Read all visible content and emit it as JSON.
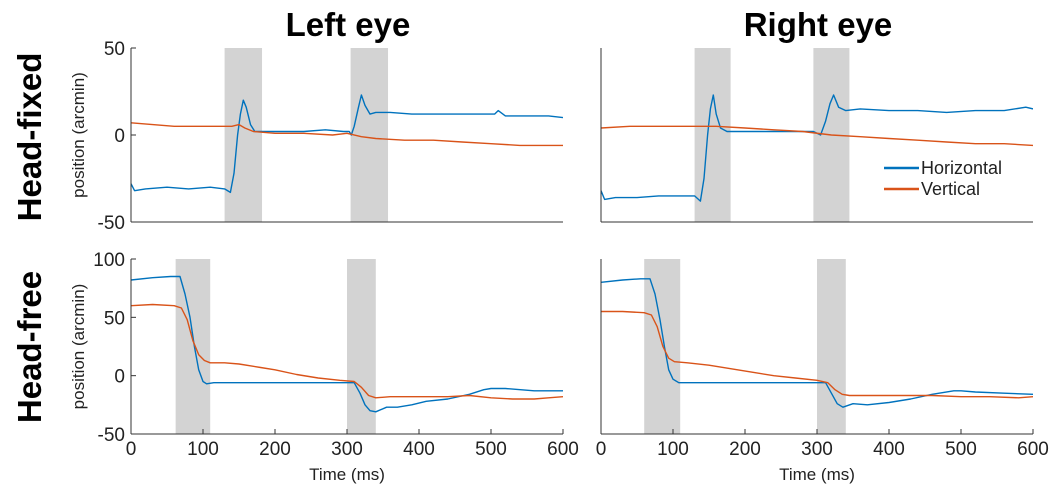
{
  "figure": {
    "column_titles": [
      "Left eye",
      "Right eye"
    ],
    "row_titles": [
      "Head-fixed",
      "Head-free"
    ],
    "legend": [
      {
        "label": "Horizontal",
        "color": "#0072BD"
      },
      {
        "label": "Vertical",
        "color": "#D95319"
      }
    ],
    "shade_color": "#d3d3d3"
  },
  "chart_data": [
    {
      "type": "line",
      "panel": "head-fixed-left-eye",
      "title": "Left eye",
      "ylabel": "position (arcmin)",
      "xlabel": "",
      "xlim": [
        0,
        600
      ],
      "ylim": [
        -50,
        50
      ],
      "xticks": [],
      "yticks": [
        -50,
        0,
        50
      ],
      "shaded_intervals": [
        [
          130,
          182
        ],
        [
          305,
          357
        ]
      ],
      "series": [
        {
          "name": "Horizontal",
          "color": "#0072BD",
          "points": [
            [
              0,
              -28
            ],
            [
              5,
              -32
            ],
            [
              20,
              -31
            ],
            [
              50,
              -30
            ],
            [
              80,
              -31
            ],
            [
              110,
              -30
            ],
            [
              130,
              -31
            ],
            [
              138,
              -33
            ],
            [
              143,
              -22
            ],
            [
              148,
              0
            ],
            [
              152,
              12
            ],
            [
              156,
              20
            ],
            [
              160,
              16
            ],
            [
              166,
              6
            ],
            [
              172,
              2
            ],
            [
              182,
              2
            ],
            [
              210,
              2
            ],
            [
              240,
              2
            ],
            [
              270,
              3
            ],
            [
              295,
              2
            ],
            [
              303,
              2
            ],
            [
              306,
              0
            ],
            [
              310,
              5
            ],
            [
              316,
              16
            ],
            [
              320,
              23
            ],
            [
              325,
              17
            ],
            [
              332,
              12
            ],
            [
              340,
              13
            ],
            [
              360,
              13
            ],
            [
              390,
              12
            ],
            [
              420,
              12
            ],
            [
              450,
              12
            ],
            [
              480,
              12
            ],
            [
              505,
              12
            ],
            [
              510,
              14
            ],
            [
              520,
              11
            ],
            [
              550,
              11
            ],
            [
              580,
              11
            ],
            [
              600,
              10
            ]
          ]
        },
        {
          "name": "Vertical",
          "color": "#D95319",
          "points": [
            [
              0,
              7
            ],
            [
              30,
              6
            ],
            [
              60,
              5
            ],
            [
              90,
              5
            ],
            [
              120,
              5
            ],
            [
              140,
              5
            ],
            [
              150,
              6
            ],
            [
              158,
              4
            ],
            [
              170,
              2
            ],
            [
              200,
              1
            ],
            [
              240,
              1
            ],
            [
              280,
              0
            ],
            [
              300,
              1
            ],
            [
              320,
              -1
            ],
            [
              340,
              -2
            ],
            [
              380,
              -3
            ],
            [
              420,
              -3
            ],
            [
              460,
              -4
            ],
            [
              500,
              -5
            ],
            [
              540,
              -6
            ],
            [
              580,
              -6
            ],
            [
              600,
              -6
            ]
          ]
        }
      ]
    },
    {
      "type": "line",
      "panel": "head-fixed-right-eye",
      "title": "Right eye",
      "ylabel": "",
      "xlabel": "",
      "xlim": [
        0,
        600
      ],
      "ylim": [
        -50,
        50
      ],
      "xticks": [],
      "yticks": [],
      "shaded_intervals": [
        [
          130,
          180
        ],
        [
          295,
          345
        ]
      ],
      "series": [
        {
          "name": "Horizontal",
          "color": "#0072BD",
          "points": [
            [
              0,
              -32
            ],
            [
              5,
              -37
            ],
            [
              20,
              -36
            ],
            [
              50,
              -36
            ],
            [
              80,
              -35
            ],
            [
              110,
              -35
            ],
            [
              130,
              -35
            ],
            [
              138,
              -38
            ],
            [
              143,
              -25
            ],
            [
              148,
              0
            ],
            [
              152,
              15
            ],
            [
              156,
              23
            ],
            [
              160,
              12
            ],
            [
              166,
              4
            ],
            [
              175,
              2
            ],
            [
              200,
              2
            ],
            [
              240,
              2
            ],
            [
              270,
              2
            ],
            [
              295,
              2
            ],
            [
              300,
              1
            ],
            [
              305,
              0
            ],
            [
              312,
              8
            ],
            [
              318,
              18
            ],
            [
              323,
              23
            ],
            [
              330,
              16
            ],
            [
              340,
              14
            ],
            [
              360,
              15
            ],
            [
              400,
              14
            ],
            [
              440,
              14
            ],
            [
              480,
              13
            ],
            [
              520,
              14
            ],
            [
              560,
              14
            ],
            [
              590,
              16
            ],
            [
              600,
              15
            ]
          ]
        },
        {
          "name": "Vertical",
          "color": "#D95319",
          "points": [
            [
              0,
              4
            ],
            [
              40,
              5
            ],
            [
              80,
              5
            ],
            [
              120,
              5
            ],
            [
              160,
              5
            ],
            [
              200,
              4
            ],
            [
              240,
              3
            ],
            [
              280,
              2
            ],
            [
              320,
              0
            ],
            [
              360,
              -1
            ],
            [
              400,
              -2
            ],
            [
              440,
              -3
            ],
            [
              480,
              -4
            ],
            [
              520,
              -5
            ],
            [
              560,
              -5
            ],
            [
              600,
              -6
            ]
          ]
        }
      ]
    },
    {
      "type": "line",
      "panel": "head-free-left-eye",
      "title": "",
      "ylabel": "position (arcmin)",
      "xlabel": "Time (ms)",
      "xlim": [
        0,
        600
      ],
      "ylim": [
        -50,
        100
      ],
      "xticks": [
        0,
        100,
        200,
        300,
        400,
        500,
        600
      ],
      "yticks": [
        -50,
        0,
        50,
        100
      ],
      "shaded_intervals": [
        [
          62,
          110
        ],
        [
          300,
          340
        ]
      ],
      "series": [
        {
          "name": "Horizontal",
          "color": "#0072BD",
          "points": [
            [
              0,
              82
            ],
            [
              30,
              84
            ],
            [
              55,
              85
            ],
            [
              68,
              85
            ],
            [
              75,
              70
            ],
            [
              82,
              50
            ],
            [
              88,
              25
            ],
            [
              94,
              5
            ],
            [
              100,
              -5
            ],
            [
              105,
              -7
            ],
            [
              115,
              -6
            ],
            [
              150,
              -6
            ],
            [
              200,
              -6
            ],
            [
              250,
              -6
            ],
            [
              280,
              -6
            ],
            [
              300,
              -6
            ],
            [
              310,
              -6
            ],
            [
              318,
              -15
            ],
            [
              325,
              -25
            ],
            [
              332,
              -30
            ],
            [
              340,
              -31
            ],
            [
              355,
              -27
            ],
            [
              370,
              -27
            ],
            [
              390,
              -25
            ],
            [
              410,
              -22
            ],
            [
              440,
              -20
            ],
            [
              470,
              -16
            ],
            [
              490,
              -12
            ],
            [
              500,
              -11
            ],
            [
              520,
              -11
            ],
            [
              560,
              -13
            ],
            [
              600,
              -13
            ]
          ]
        },
        {
          "name": "Vertical",
          "color": "#D95319",
          "points": [
            [
              0,
              60
            ],
            [
              30,
              61
            ],
            [
              60,
              60
            ],
            [
              70,
              58
            ],
            [
              78,
              48
            ],
            [
              86,
              30
            ],
            [
              94,
              18
            ],
            [
              102,
              13
            ],
            [
              110,
              11
            ],
            [
              130,
              11
            ],
            [
              150,
              10
            ],
            [
              180,
              7
            ],
            [
              200,
              5
            ],
            [
              230,
              1
            ],
            [
              260,
              -2
            ],
            [
              290,
              -4
            ],
            [
              310,
              -5
            ],
            [
              320,
              -10
            ],
            [
              330,
              -17
            ],
            [
              340,
              -19
            ],
            [
              360,
              -18
            ],
            [
              400,
              -18
            ],
            [
              440,
              -18
            ],
            [
              470,
              -17
            ],
            [
              500,
              -19
            ],
            [
              530,
              -20
            ],
            [
              560,
              -20
            ],
            [
              580,
              -19
            ],
            [
              600,
              -18
            ]
          ]
        }
      ]
    },
    {
      "type": "line",
      "panel": "head-free-right-eye",
      "title": "",
      "ylabel": "",
      "xlabel": "Time (ms)",
      "xlim": [
        0,
        600
      ],
      "ylim": [
        -50,
        100
      ],
      "xticks": [
        0,
        100,
        200,
        300,
        400,
        500,
        600
      ],
      "yticks": [],
      "shaded_intervals": [
        [
          60,
          110
        ],
        [
          300,
          340
        ]
      ],
      "series": [
        {
          "name": "Horizontal",
          "color": "#0072BD",
          "points": [
            [
              0,
              80
            ],
            [
              30,
              82
            ],
            [
              55,
              83
            ],
            [
              68,
              83
            ],
            [
              75,
              70
            ],
            [
              82,
              48
            ],
            [
              88,
              25
            ],
            [
              94,
              5
            ],
            [
              100,
              -3
            ],
            [
              108,
              -6
            ],
            [
              130,
              -6
            ],
            [
              160,
              -6
            ],
            [
              200,
              -6
            ],
            [
              240,
              -6
            ],
            [
              280,
              -6
            ],
            [
              300,
              -6
            ],
            [
              312,
              -6
            ],
            [
              320,
              -15
            ],
            [
              328,
              -24
            ],
            [
              336,
              -27
            ],
            [
              350,
              -24
            ],
            [
              370,
              -25
            ],
            [
              400,
              -23
            ],
            [
              430,
              -20
            ],
            [
              460,
              -16
            ],
            [
              490,
              -13
            ],
            [
              500,
              -13
            ],
            [
              520,
              -14
            ],
            [
              560,
              -15
            ],
            [
              600,
              -16
            ]
          ]
        },
        {
          "name": "Vertical",
          "color": "#D95319",
          "points": [
            [
              0,
              55
            ],
            [
              30,
              55
            ],
            [
              60,
              54
            ],
            [
              70,
              52
            ],
            [
              78,
              42
            ],
            [
              86,
              25
            ],
            [
              94,
              15
            ],
            [
              102,
              12
            ],
            [
              120,
              11
            ],
            [
              150,
              9
            ],
            [
              180,
              6
            ],
            [
              210,
              3
            ],
            [
              240,
              0
            ],
            [
              270,
              -2
            ],
            [
              300,
              -4
            ],
            [
              315,
              -6
            ],
            [
              325,
              -12
            ],
            [
              335,
              -16
            ],
            [
              345,
              -17
            ],
            [
              380,
              -17
            ],
            [
              420,
              -17
            ],
            [
              460,
              -17
            ],
            [
              500,
              -18
            ],
            [
              540,
              -18
            ],
            [
              580,
              -19
            ],
            [
              600,
              -18
            ]
          ]
        }
      ]
    }
  ]
}
